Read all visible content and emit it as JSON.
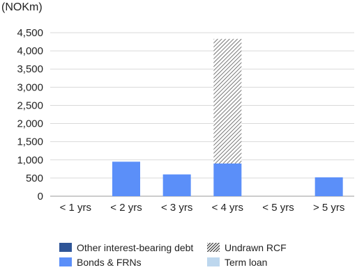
{
  "chart_data": {
    "type": "bar",
    "stacked": true,
    "unit_label": "(NOKm)",
    "title": "",
    "xlabel": "",
    "ylabel": "",
    "categories": [
      "< 1 yrs",
      "< 2 yrs",
      "< 3 yrs",
      "< 4 yrs",
      "< 5 yrs",
      "> 5 yrs"
    ],
    "series": [
      {
        "name": "Other interest-bearing debt",
        "color": "#2f5597",
        "pattern": "solid",
        "values": [
          0,
          0,
          0,
          0,
          0,
          0
        ]
      },
      {
        "name": "Bonds & FRNs",
        "color": "#5b8ff9",
        "pattern": "solid",
        "values": [
          0,
          950,
          600,
          900,
          0,
          520
        ]
      },
      {
        "name": "Term loan",
        "color": "#bdd7ee",
        "pattern": "solid",
        "values": [
          0,
          0,
          0,
          0,
          0,
          0
        ]
      },
      {
        "name": "Undrawn RCF",
        "color": "#555555",
        "pattern": "diagonal-hatch",
        "values": [
          0,
          0,
          0,
          3430,
          0,
          0
        ]
      }
    ],
    "ylim": [
      0,
      4500
    ],
    "yticks": [
      0,
      500,
      1000,
      1500,
      2000,
      2500,
      3000,
      3500,
      4000,
      4500
    ],
    "ytick_labels": [
      "0",
      "500",
      "1,000",
      "1,500",
      "2,000",
      "2,500",
      "3,000",
      "3,500",
      "4,000",
      "4,500"
    ],
    "grid": true,
    "legend_position": "bottom",
    "legend_layout": [
      [
        0,
        3
      ],
      [
        1,
        2
      ]
    ]
  }
}
